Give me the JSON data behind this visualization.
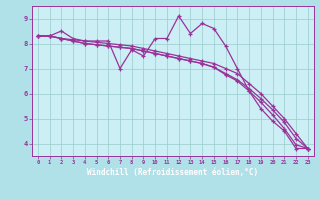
{
  "xlabel": "Windchill (Refroidissement éolien,°C)",
  "background_color": "#b0e0e8",
  "plot_bg_color": "#cceef5",
  "grid_color": "#99cccc",
  "line_color": "#993399",
  "xlabel_bg": "#9966bb",
  "xlim": [
    -0.5,
    23.5
  ],
  "ylim": [
    3.5,
    9.5
  ],
  "yticks": [
    4,
    5,
    6,
    7,
    8,
    9
  ],
  "xticks": [
    0,
    1,
    2,
    3,
    4,
    5,
    6,
    7,
    8,
    9,
    10,
    11,
    12,
    13,
    14,
    15,
    16,
    17,
    18,
    19,
    20,
    21,
    22,
    23
  ],
  "series": [
    {
      "x": [
        0,
        1,
        2,
        3,
        4,
        5,
        6,
        7,
        8,
        9,
        10,
        11,
        12,
        13,
        14,
        15,
        16,
        17,
        18,
        19,
        20,
        21,
        22,
        23
      ],
      "y": [
        8.3,
        8.3,
        8.5,
        8.2,
        8.1,
        8.1,
        8.1,
        7.0,
        7.75,
        7.5,
        8.2,
        8.2,
        9.1,
        8.4,
        8.8,
        8.6,
        7.9,
        7.0,
        6.1,
        5.4,
        4.9,
        4.5,
        3.8,
        3.8
      ]
    },
    {
      "x": [
        0,
        1,
        2,
        3,
        4,
        5,
        6,
        7,
        8,
        9,
        10,
        11,
        12,
        13,
        14,
        15,
        16,
        17,
        18,
        19,
        20,
        21,
        22,
        23
      ],
      "y": [
        8.3,
        8.3,
        8.2,
        8.15,
        8.1,
        8.05,
        8.0,
        7.95,
        7.9,
        7.8,
        7.7,
        7.6,
        7.5,
        7.4,
        7.3,
        7.2,
        7.0,
        6.8,
        6.4,
        6.0,
        5.5,
        5.0,
        4.4,
        3.8
      ]
    },
    {
      "x": [
        0,
        1,
        2,
        3,
        4,
        5,
        6,
        7,
        8,
        9,
        10,
        11,
        12,
        13,
        14,
        15,
        16,
        17,
        18,
        19,
        20,
        21,
        22,
        23
      ],
      "y": [
        8.3,
        8.3,
        8.2,
        8.1,
        8.0,
        7.95,
        7.9,
        7.85,
        7.8,
        7.7,
        7.6,
        7.5,
        7.4,
        7.3,
        7.2,
        7.05,
        6.8,
        6.55,
        6.2,
        5.8,
        5.35,
        4.85,
        4.2,
        3.8
      ]
    },
    {
      "x": [
        0,
        1,
        2,
        3,
        4,
        5,
        6,
        7,
        8,
        9,
        10,
        11,
        12,
        13,
        14,
        15,
        16,
        17,
        18,
        19,
        20,
        21,
        22,
        23
      ],
      "y": [
        8.3,
        8.3,
        8.2,
        8.1,
        8.0,
        7.95,
        7.9,
        7.85,
        7.8,
        7.7,
        7.6,
        7.5,
        7.4,
        7.3,
        7.2,
        7.05,
        6.75,
        6.5,
        6.1,
        5.65,
        5.15,
        4.6,
        3.95,
        3.8
      ]
    }
  ]
}
